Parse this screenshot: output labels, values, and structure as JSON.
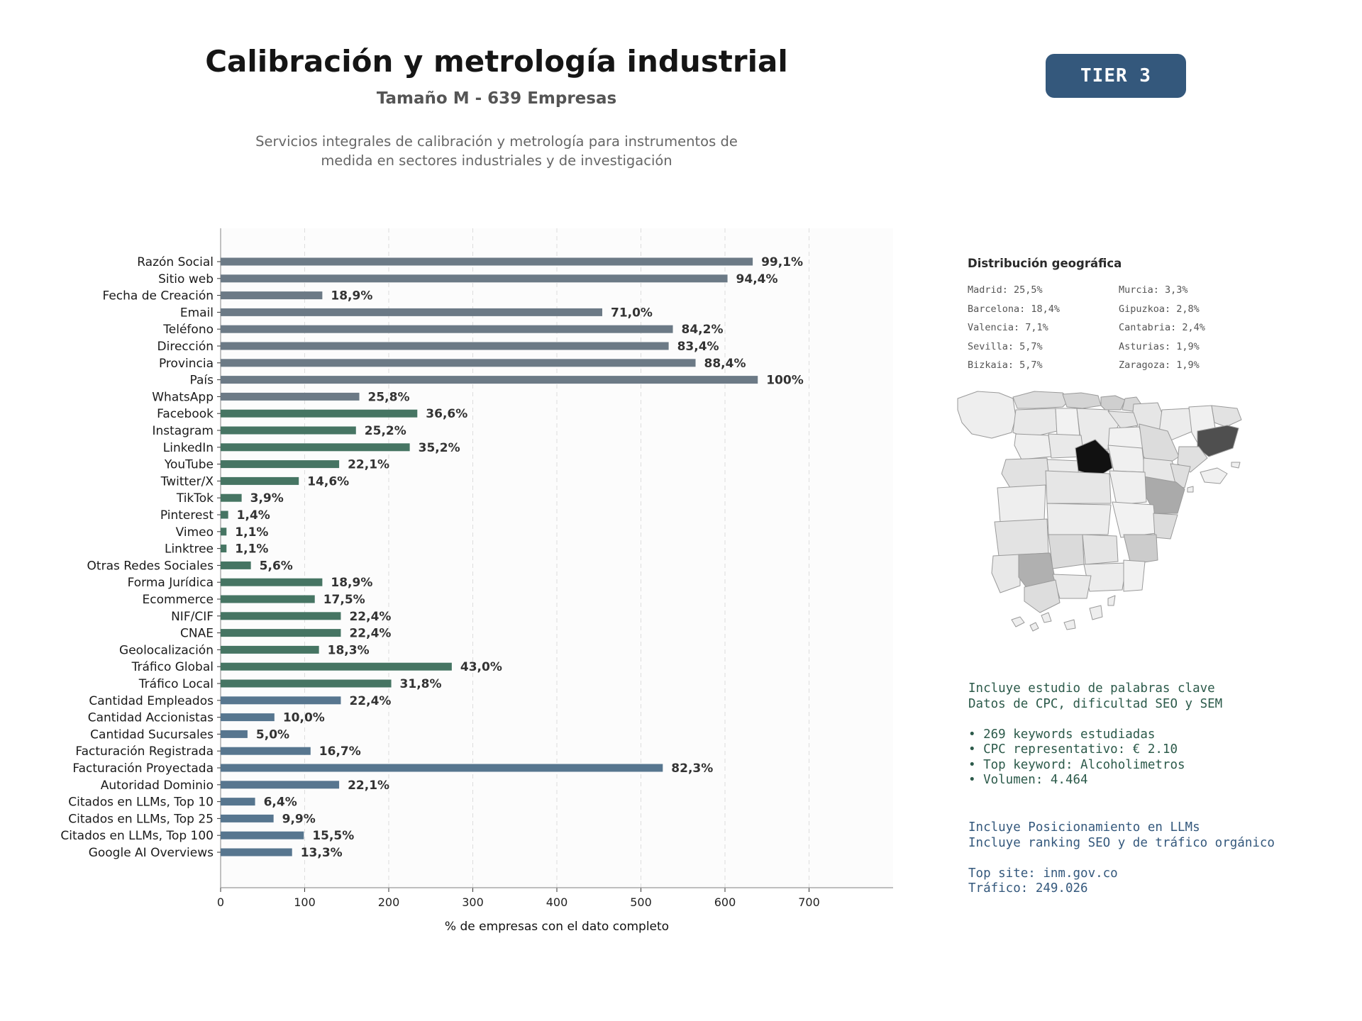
{
  "header": {
    "title": "Calibración y metrología industrial",
    "subtitle": "Tamaño M - 639 Empresas",
    "description_line1": "Servicios integrales de calibración y metrología para instrumentos de",
    "description_line2": "medida en sectores industriales y de investigación",
    "tier": "TIER 3"
  },
  "chart_data": {
    "type": "bar",
    "orientation": "horizontal",
    "xlabel": "% de empresas con el dato completo",
    "xlim": [
      0,
      800
    ],
    "xticks": [
      0,
      100,
      200,
      300,
      400,
      500,
      600,
      700
    ],
    "grid": true,
    "categories": [
      "Razón Social",
      "Sitio web",
      "Fecha de Creación",
      "Email",
      "Teléfono",
      "Dirección",
      "Provincia",
      "País",
      "WhatsApp",
      "Facebook",
      "Instagram",
      "LinkedIn",
      "YouTube",
      "Twitter/X",
      "TikTok",
      "Pinterest",
      "Vimeo",
      "Linktree",
      "Otras Redes Sociales",
      "Forma Jurídica",
      "Ecommerce",
      "NIF/CIF",
      "CNAE",
      "Geolocalización",
      "Tráfico Global",
      "Tráfico Local",
      "Cantidad Empleados",
      "Cantidad Accionistas",
      "Cantidad Sucursales",
      "Facturación Registrada",
      "Facturación Proyectada",
      "Autoridad Dominio",
      "Citados en LLMs, Top 10",
      "Citados en LLMs, Top 25",
      "Citados en LLMs, Top 100",
      "Google AI Overviews"
    ],
    "values": [
      633,
      603,
      121,
      454,
      538,
      533,
      565,
      639,
      165,
      234,
      161,
      225,
      141,
      93,
      25,
      9,
      7,
      7,
      36,
      121,
      112,
      143,
      143,
      117,
      275,
      203,
      143,
      64,
      32,
      107,
      526,
      141,
      41,
      63,
      99,
      85
    ],
    "labels": [
      "99,1%",
      "94,4%",
      "18,9%",
      "71,0%",
      "84,2%",
      "83,4%",
      "88,4%",
      "100%",
      "25,8%",
      "36,6%",
      "25,2%",
      "35,2%",
      "22,1%",
      "14,6%",
      "3,9%",
      "1,4%",
      "1,1%",
      "1,1%",
      "5,6%",
      "18,9%",
      "17,5%",
      "22,4%",
      "22,4%",
      "18,3%",
      "43,0%",
      "31,8%",
      "22,4%",
      "10,0%",
      "5,0%",
      "16,7%",
      "82,3%",
      "22,1%",
      "6,4%",
      "9,9%",
      "15,5%",
      "13,3%"
    ],
    "groups": [
      {
        "name": "basic",
        "color": "#6c7a86",
        "count": 9
      },
      {
        "name": "digital",
        "color": "#467563",
        "count": 17
      },
      {
        "name": "business",
        "color": "#57768f",
        "count": 10
      }
    ]
  },
  "geo": {
    "title": "Distribución geográfica",
    "left": [
      "Madrid: 25,5%",
      "Barcelona: 18,4%",
      "Valencia: 7,1%",
      "Sevilla: 5,7%",
      "Bizkaia: 5,7%"
    ],
    "right": [
      "Murcia: 3,3%",
      "Gipuzkoa: 2,8%",
      "Cantabria: 2,4%",
      "Asturias: 1,9%",
      "Zaragoza: 1,9%"
    ]
  },
  "keywords": {
    "lines": [
      "Incluye estudio de palabras clave",
      "Datos de CPC, dificultad SEO y SEM",
      "",
      "• 269 keywords estudiadas",
      "• CPC representativo: € 2.10",
      "• Top keyword: Alcoholimetros",
      "• Volumen: 4.464"
    ]
  },
  "llm": {
    "lines": [
      "Incluye Posicionamiento en LLMs",
      "Incluye ranking SEO y de tráfico orgánico",
      "",
      "Top site: inm.gov.co",
      "Tráfico: 249.026"
    ]
  }
}
